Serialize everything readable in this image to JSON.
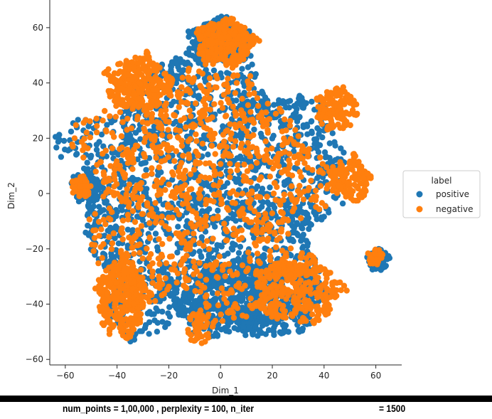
{
  "chart_data": {
    "type": "scatter",
    "title": "",
    "xlabel": "Dim_1",
    "ylabel": "Dim_2",
    "xlim": [
      -66,
      70
    ],
    "ylim": [
      -62,
      70
    ],
    "xticks": [
      -60,
      -40,
      -20,
      0,
      20,
      40,
      60
    ],
    "yticks": [
      -60,
      -40,
      -20,
      0,
      20,
      40,
      60
    ],
    "xtick_labels": [
      "−60",
      "−40",
      "−20",
      "0",
      "20",
      "40",
      "60"
    ],
    "ytick_labels": [
      "−60",
      "−40",
      "−20",
      "0",
      "20",
      "40",
      "60"
    ],
    "legend": {
      "title": "label",
      "placement": "center-right outside",
      "entries": [
        "positive",
        "negative"
      ]
    },
    "series": [
      {
        "name": "positive",
        "color": "#1f77b4",
        "regions": [
          {
            "cx": -5,
            "cy": 0,
            "rx": 52,
            "ry": 52,
            "weight": 1.0
          },
          {
            "cx": 0,
            "cy": 55,
            "rx": 12,
            "ry": 8,
            "weight": 0.25
          },
          {
            "cx": -52,
            "cy": 2,
            "rx": 5,
            "ry": 5,
            "weight": 0.06
          },
          {
            "cx": 61,
            "cy": -24,
            "rx": 4,
            "ry": 4,
            "weight": 0.04
          },
          {
            "cx": 10,
            "cy": -38,
            "rx": 30,
            "ry": 14,
            "weight": 0.35
          }
        ]
      },
      {
        "name": "negative",
        "color": "#ff7f0e",
        "regions": [
          {
            "cx": -8,
            "cy": 2,
            "rx": 46,
            "ry": 46,
            "weight": 1.0
          },
          {
            "cx": 2,
            "cy": 55,
            "rx": 11,
            "ry": 8,
            "weight": 0.25
          },
          {
            "cx": -32,
            "cy": 40,
            "rx": 12,
            "ry": 10,
            "weight": 0.25
          },
          {
            "cx": -38,
            "cy": -38,
            "rx": 10,
            "ry": 14,
            "weight": 0.3
          },
          {
            "cx": 30,
            "cy": -35,
            "rx": 16,
            "ry": 12,
            "weight": 0.3
          },
          {
            "cx": 45,
            "cy": 30,
            "rx": 8,
            "ry": 8,
            "weight": 0.12
          },
          {
            "cx": 50,
            "cy": 5,
            "rx": 8,
            "ry": 8,
            "weight": 0.12
          },
          {
            "cx": -54,
            "cy": 2,
            "rx": 4,
            "ry": 4,
            "weight": 0.05
          },
          {
            "cx": 60,
            "cy": -23,
            "rx": 3,
            "ry": 3,
            "weight": 0.03
          },
          {
            "cx": -8,
            "cy": -48,
            "rx": 5,
            "ry": 6,
            "weight": 0.05
          }
        ]
      }
    ]
  },
  "caption": {
    "left": "num_points = 1,00,000 , perplexity = 100, n_iter",
    "right": "= 1500"
  }
}
